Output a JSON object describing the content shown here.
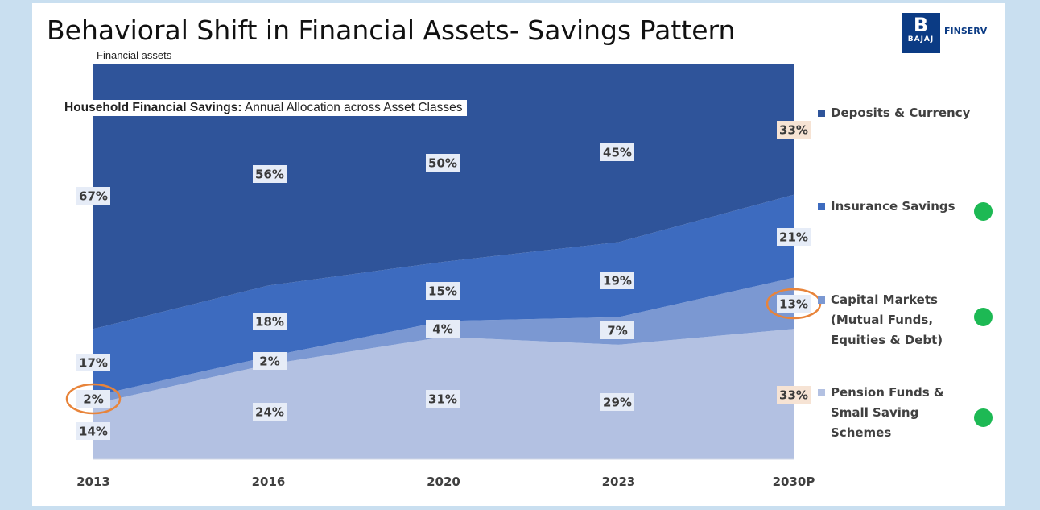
{
  "title": "Behavioral Shift in Financial Assets- Savings Pattern",
  "subtitle": "Financial assets",
  "logo": {
    "mark": "B",
    "name": "BAJAJ",
    "brand": "FINSERV"
  },
  "chart_title": {
    "bold": "Household Financial Savings:",
    "rest": " Annual Allocation across Asset Classes"
  },
  "colors": {
    "background": "#c9dff0",
    "deposits": "#2f549a",
    "insurance": "#3d6bbf",
    "capital": "#7b98d2",
    "pension": "#b3c1e2",
    "highlight_circle": "#e8843a",
    "green_dot": "#1db954"
  },
  "chart_data": {
    "type": "area",
    "stacked": true,
    "categories": [
      "2013",
      "2016",
      "2020",
      "2023",
      "2030P"
    ],
    "ylim": [
      0,
      100
    ],
    "series": [
      {
        "name": "Pension Funds & Small Saving Schemes",
        "values": [
          14,
          24,
          31,
          29,
          33
        ],
        "labels": [
          "14%",
          "24%",
          "31%",
          "29%",
          "33%"
        ]
      },
      {
        "name": "Capital Markets (Mutual Funds, Equities & Debt)",
        "values": [
          2,
          2,
          4,
          7,
          13
        ],
        "labels": [
          "2%",
          "2%",
          "4%",
          "7%",
          "13%"
        ]
      },
      {
        "name": "Insurance Savings",
        "values": [
          17,
          18,
          15,
          19,
          21
        ],
        "labels": [
          "17%",
          "18%",
          "15%",
          "19%",
          "21%"
        ]
      },
      {
        "name": "Deposits & Currency",
        "values": [
          67,
          56,
          50,
          45,
          33
        ],
        "labels": [
          "67%",
          "56%",
          "50%",
          "45%",
          "33%"
        ]
      }
    ],
    "highlighted": [
      "2%",
      "13%"
    ],
    "legend": "right"
  },
  "legend": [
    {
      "label": "Deposits & Currency",
      "icon": "deposits-swatch",
      "green_dot": false
    },
    {
      "label": "Insurance Savings",
      "icon": "insurance-swatch",
      "green_dot": true
    },
    {
      "label": "Capital Markets\n(Mutual Funds,\nEquities & Debt)",
      "icon": "capital-swatch",
      "green_dot": true
    },
    {
      "label": "Pension Funds &\nSmall Saving\nSchemes",
      "icon": "pension-swatch",
      "green_dot": true
    }
  ]
}
